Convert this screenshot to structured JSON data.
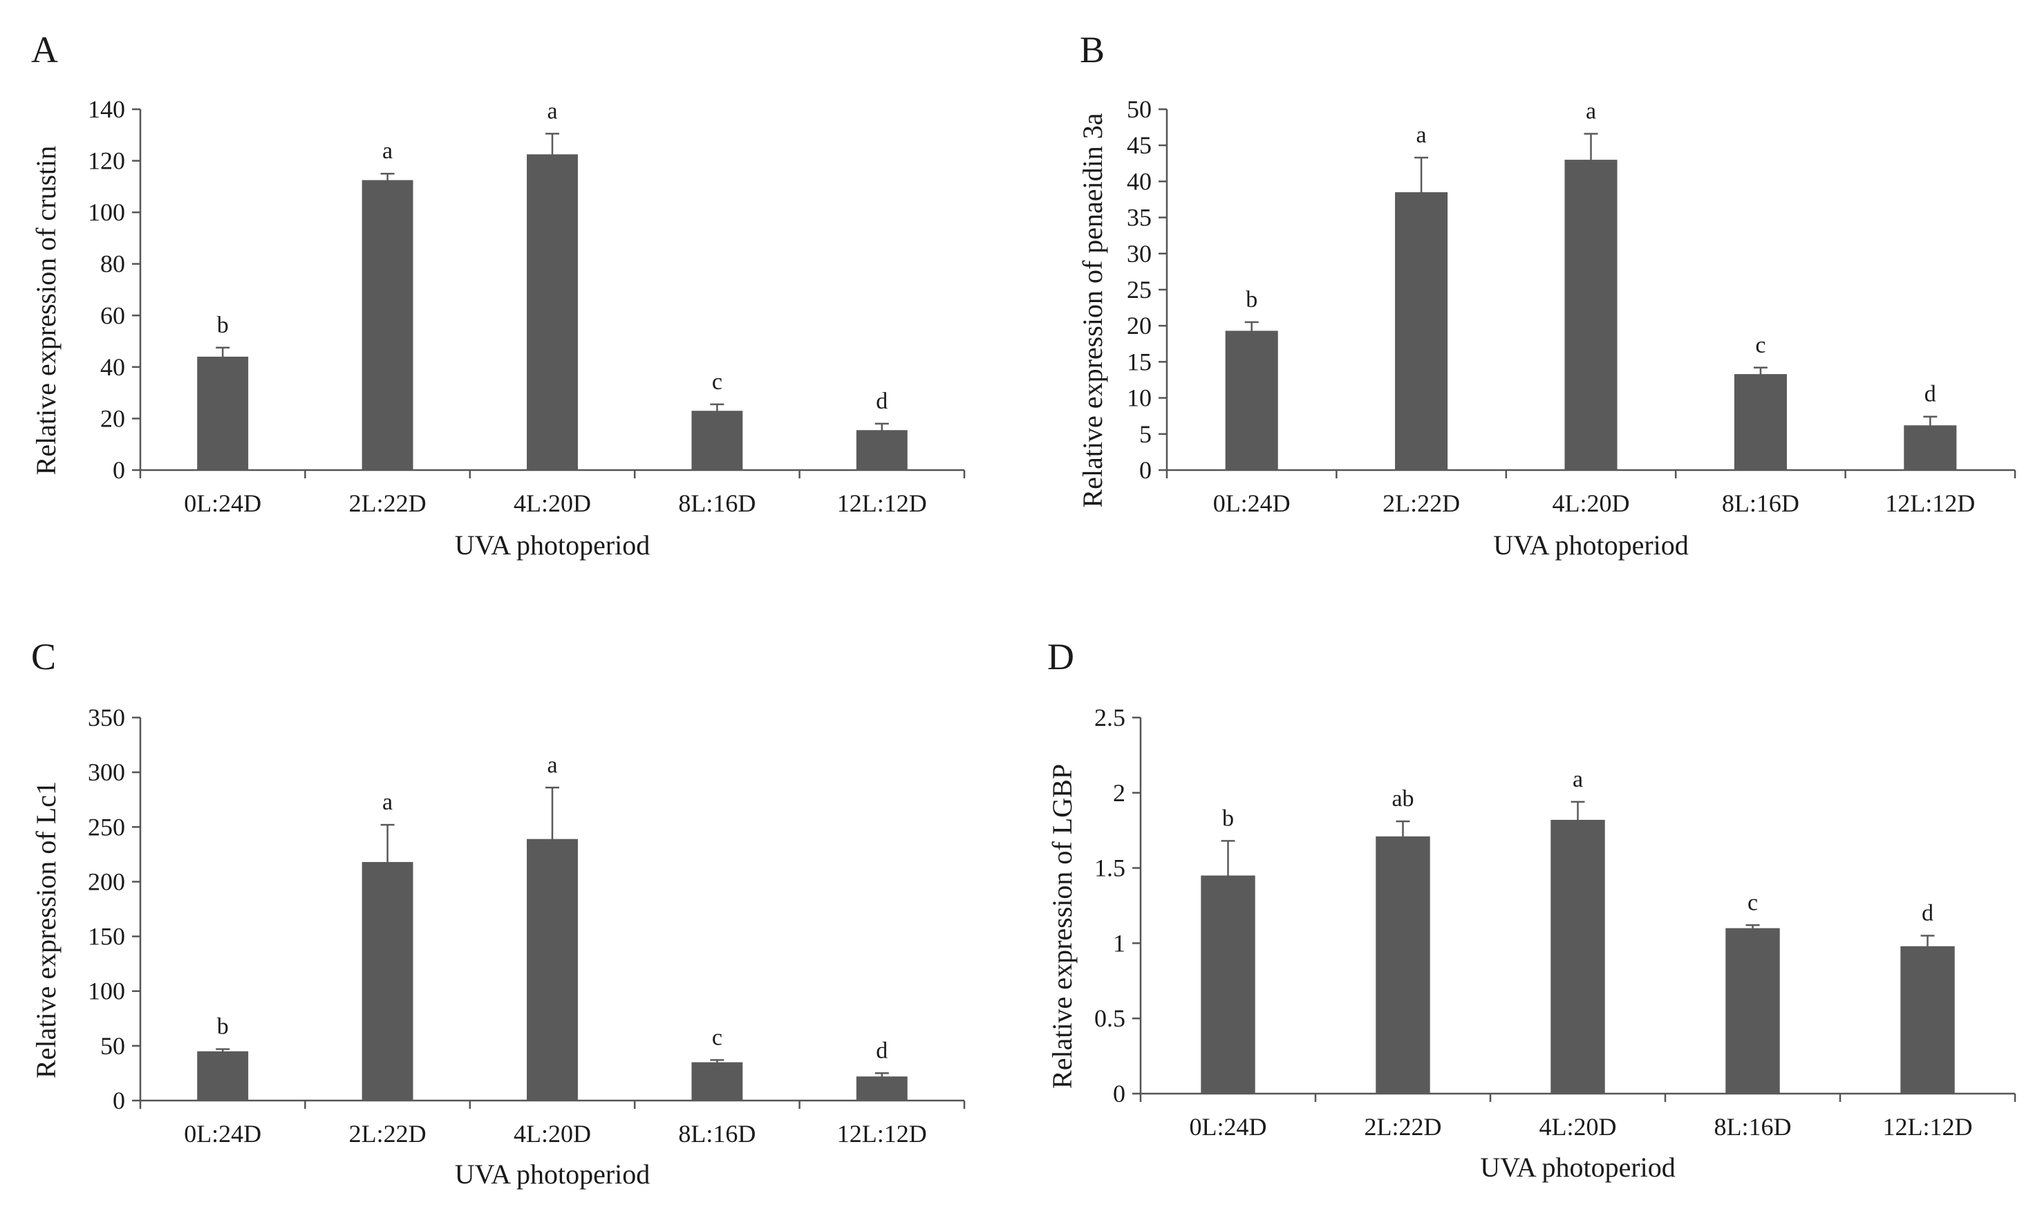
{
  "chart_data": [
    {
      "type": "bar",
      "panel": "A",
      "categories": [
        "0L:24D",
        "2L:22D",
        "4L:20D",
        "8L:16D",
        "12L:12D"
      ],
      "values": [
        44,
        112.5,
        122.5,
        23,
        15.5
      ],
      "errors": [
        3.5,
        2.5,
        8,
        2.5,
        2.5
      ],
      "significance": [
        "b",
        "a",
        "a",
        "c",
        "d"
      ],
      "xlabel": "UVA photoperiod",
      "ylabel": "Relative expression of crustin",
      "ylim": [
        0,
        140
      ],
      "yticks": [
        0,
        20,
        40,
        60,
        80,
        100,
        120,
        140
      ],
      "ytick_labels": [
        "0",
        "20",
        "40",
        "60",
        "80",
        "100",
        "120",
        "140"
      ]
    },
    {
      "type": "bar",
      "panel": "B",
      "categories": [
        "0L:24D",
        "2L:22D",
        "4L:20D",
        "8L:16D",
        "12L:12D"
      ],
      "values": [
        19.3,
        38.5,
        43,
        13.3,
        6.2
      ],
      "errors": [
        1.2,
        4.8,
        3.6,
        0.9,
        1.2
      ],
      "significance": [
        "b",
        "a",
        "a",
        "c",
        "d"
      ],
      "xlabel": "UVA photoperiod",
      "ylabel": "Relative expression of penaeidin 3a",
      "ylim": [
        0,
        50
      ],
      "yticks": [
        0,
        5,
        10,
        15,
        20,
        25,
        30,
        35,
        40,
        45,
        50
      ],
      "ytick_labels": [
        "0",
        "5",
        "10",
        "15",
        "20",
        "25",
        "30",
        "35",
        "40",
        "45",
        "50"
      ]
    },
    {
      "type": "bar",
      "panel": "C",
      "categories": [
        "0L:24D",
        "2L:22D",
        "4L:20D",
        "8L:16D",
        "12L:12D"
      ],
      "values": [
        45,
        218,
        239,
        35,
        22
      ],
      "errors": [
        2,
        34,
        47,
        2,
        3
      ],
      "significance": [
        "b",
        "a",
        "a",
        "c",
        "d"
      ],
      "xlabel": "UVA photoperiod",
      "ylabel": "Relative expression of Lc1",
      "ylim": [
        0,
        350
      ],
      "yticks": [
        0,
        50,
        100,
        150,
        200,
        250,
        300,
        350
      ],
      "ytick_labels": [
        "0",
        "50",
        "100",
        "150",
        "200",
        "250",
        "300",
        "350"
      ]
    },
    {
      "type": "bar",
      "panel": "D",
      "categories": [
        "0L:24D",
        "2L:22D",
        "4L:20D",
        "8L:16D",
        "12L:12D"
      ],
      "values": [
        1.45,
        1.71,
        1.82,
        1.1,
        0.98
      ],
      "errors": [
        0.23,
        0.1,
        0.12,
        0.02,
        0.07
      ],
      "significance": [
        "b",
        "ab",
        "a",
        "c",
        "d"
      ],
      "xlabel": "UVA photoperiod",
      "ylabel": "Relative expression of LGBP",
      "ylim": [
        0,
        2.5
      ],
      "yticks": [
        0,
        0.5,
        1,
        1.5,
        2,
        2.5
      ],
      "ytick_labels": [
        "0",
        "0.5",
        "1",
        "1.5",
        "2",
        "2.5"
      ]
    }
  ]
}
